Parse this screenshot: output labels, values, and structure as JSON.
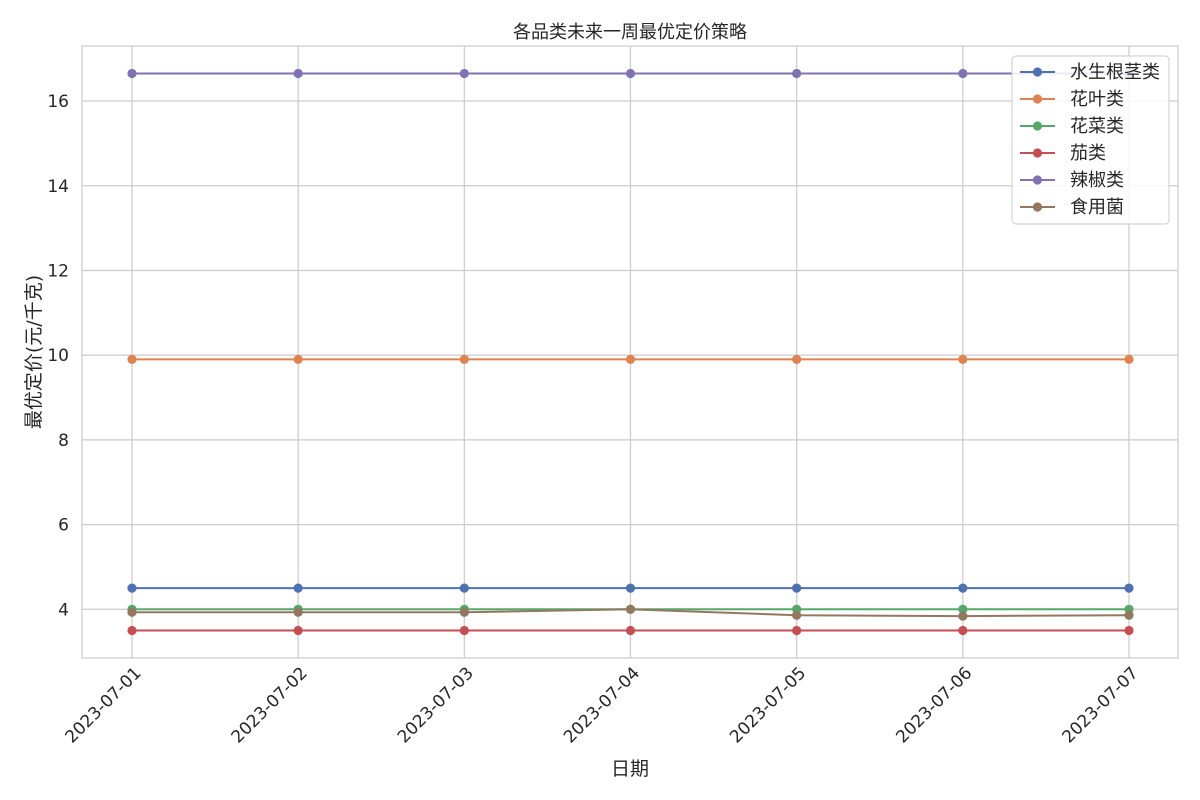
{
  "chart_data": {
    "type": "line",
    "title": "各品类未来一周最优定价策略",
    "xlabel": "日期",
    "ylabel": "最优定价(元/千克)",
    "x": [
      "2023-07-01",
      "2023-07-02",
      "2023-07-03",
      "2023-07-04",
      "2023-07-05",
      "2023-07-06",
      "2023-07-07"
    ],
    "ylim": [
      2.85,
      17.3
    ],
    "yticks": [
      4,
      6,
      8,
      10,
      12,
      14,
      16
    ],
    "grid": true,
    "legend_position": "top-right",
    "series": [
      {
        "name": "水生根茎类",
        "color": "#4c72b0",
        "values": [
          4.5,
          4.5,
          4.5,
          4.5,
          4.5,
          4.5,
          4.5
        ]
      },
      {
        "name": "花叶类",
        "color": "#dd8452",
        "values": [
          9.9,
          9.9,
          9.9,
          9.9,
          9.9,
          9.9,
          9.9
        ]
      },
      {
        "name": "花菜类",
        "color": "#55a868",
        "values": [
          4.0,
          4.0,
          4.0,
          4.0,
          4.0,
          4.0,
          4.0
        ]
      },
      {
        "name": "茄类",
        "color": "#c44e52",
        "values": [
          3.5,
          3.5,
          3.5,
          3.5,
          3.5,
          3.5,
          3.5
        ]
      },
      {
        "name": "辣椒类",
        "color": "#8172b3",
        "values": [
          16.65,
          16.65,
          16.65,
          16.65,
          16.65,
          16.65,
          16.65
        ]
      },
      {
        "name": "食用菌",
        "color": "#937860",
        "values": [
          3.93,
          3.93,
          3.93,
          4.0,
          3.86,
          3.84,
          3.86
        ]
      }
    ]
  }
}
